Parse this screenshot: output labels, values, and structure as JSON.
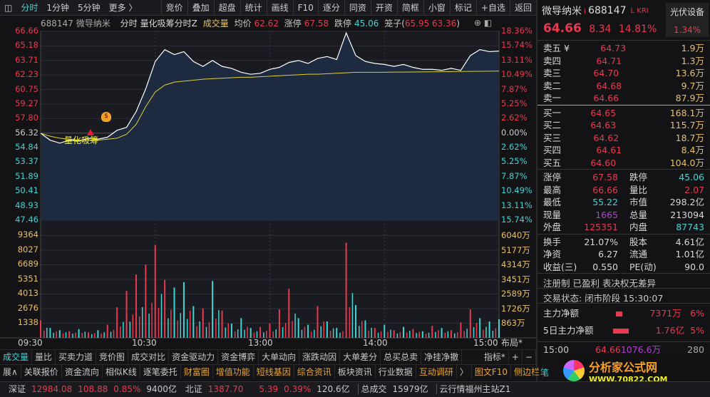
{
  "toolbar": {
    "left": [
      "分时",
      "1分钟",
      "5分钟",
      "更多 〉"
    ],
    "right": [
      "竞价",
      "叠加",
      "超盘",
      "统计",
      "画线",
      "F10",
      "逐分",
      "同资",
      "开资",
      "简框",
      "小窗",
      "标记",
      "+自选",
      "返回"
    ]
  },
  "info": {
    "code": "688147",
    "name": "微导纳米",
    "mode": "分时",
    "indicator": "量化吸筹分时Z",
    "volume_label": "成交量",
    "avg_label": "均价",
    "avg": "62.62",
    "up_label": "涨停",
    "up": "67.58",
    "down_label": "跌停",
    "down": "45.06",
    "cage_label": "笼子(",
    "cage": "65.95 63.36",
    ")": ")",
    "cage_close": ")"
  },
  "annotation": "量化吸筹",
  "chart_data": {
    "type": "line",
    "title": "688147 微导纳米 分时",
    "x_ticks": [
      "09:30",
      "10:30",
      "13:00",
      "14:00",
      "15:00"
    ],
    "price_ticks_left": [
      "66.66",
      "65.18",
      "63.71",
      "62.23",
      "60.75",
      "59.27",
      "57.80",
      "56.32",
      "54.84",
      "53.37",
      "51.89",
      "50.41",
      "48.93",
      "47.46"
    ],
    "pct_ticks_right": [
      "18.36%",
      "15.74%",
      "13.11%",
      "10.49%",
      "7.87%",
      "5.25%",
      "2.62%",
      "0.00%",
      "2.62%",
      "5.25%",
      "7.87%",
      "10.49%",
      "13.11%",
      "15.74%"
    ],
    "volume_ticks_left": [
      "9364",
      "8027",
      "6689",
      "5351",
      "4013",
      "2676",
      "1338"
    ],
    "volume_ticks_right": [
      "6040万",
      "5177万",
      "4314万",
      "3451万",
      "2589万",
      "1726万",
      "863万"
    ],
    "ylim": [
      47.46,
      66.66
    ],
    "prev_close": 56.32,
    "vol_max": 10700,
    "series": [
      {
        "name": "价格",
        "values": [
          56.3,
          55.6,
          55.3,
          55.6,
          55.5,
          55.8,
          55.7,
          55.9,
          56.6,
          56.9,
          58.5,
          60.8,
          63.6,
          64.8,
          64.3,
          64.6,
          63.6,
          63.1,
          63.7,
          63.1,
          62.9,
          62.5,
          62.3,
          62.4,
          62.8,
          63.0,
          63.5,
          63.7,
          63.4,
          63.9,
          64.1,
          63.8,
          66.5,
          64.2,
          63.6,
          63.4,
          63.3,
          63.1,
          63.3,
          63.0,
          62.8,
          62.8,
          62.7,
          62.9,
          62.7,
          64.2,
          64.8,
          64.6,
          64.66
        ]
      },
      {
        "name": "均价",
        "values": [
          56.3,
          56.0,
          55.8,
          55.7,
          55.6,
          55.6,
          55.6,
          55.7,
          55.8,
          56.2,
          57.2,
          59.0,
          60.5,
          61.2,
          61.5,
          61.6,
          61.7,
          61.8,
          61.85,
          61.9,
          61.95,
          62.0,
          62.0,
          62.05,
          62.1,
          62.15,
          62.2,
          62.25,
          62.3,
          62.3,
          62.35,
          62.4,
          62.45,
          62.5,
          62.5,
          62.5,
          62.5,
          62.52,
          62.52,
          62.53,
          62.54,
          62.55,
          62.56,
          62.57,
          62.58,
          62.59,
          62.6,
          62.61,
          62.62
        ]
      },
      {
        "name": "成交量",
        "values": [
          1600,
          900,
          700,
          600,
          800,
          500,
          700,
          1200,
          2800,
          4300,
          5800,
          6700,
          8500,
          5300,
          4600,
          5100,
          2900,
          2700,
          5200,
          2500,
          1300,
          1800,
          900,
          1000,
          1300,
          2600,
          4500,
          1800,
          1200,
          2900,
          1500,
          900,
          8700,
          3000,
          1600,
          900,
          1200,
          700,
          1000,
          800,
          600,
          1100,
          900,
          700,
          1400,
          2600,
          1800,
          1500,
          1700
        ],
        "colors": [
          "r",
          "c",
          "c",
          "r",
          "c",
          "r",
          "c",
          "r",
          "r",
          "r",
          "r",
          "r",
          "r",
          "r",
          "c",
          "c",
          "c",
          "r",
          "c",
          "r",
          "c",
          "c",
          "c",
          "r",
          "r",
          "r",
          "r",
          "c",
          "c",
          "r",
          "c",
          "c",
          "r",
          "c",
          "c",
          "r",
          "c",
          "r",
          "c",
          "r",
          "c",
          "r",
          "c",
          "r",
          "r",
          "r",
          "c",
          "c",
          "c"
        ]
      }
    ]
  },
  "panel": {
    "name": "微导纳米",
    "code": "688147",
    "badge_i": "i",
    "tag": "L KRI",
    "sector": "光伏设备",
    "sector_pct": "1.34%",
    "price": "64.66",
    "change": "8.34",
    "pct": "14.81%",
    "asks": [
      {
        "l": "卖五 ¥",
        "p": "64.73",
        "v": "1.9万"
      },
      {
        "l": "卖四",
        "p": "64.71",
        "v": "1.3万"
      },
      {
        "l": "卖三",
        "p": "64.70",
        "v": "13.6万"
      },
      {
        "l": "卖二",
        "p": "64.68",
        "v": "9.7万"
      },
      {
        "l": "卖一",
        "p": "64.66",
        "v": "87.9万"
      }
    ],
    "bids": [
      {
        "l": "买一",
        "p": "64.65",
        "v": "168.1万"
      },
      {
        "l": "买二",
        "p": "64.63",
        "v": "115.7万"
      },
      {
        "l": "买三",
        "p": "64.62",
        "v": "18.7万"
      },
      {
        "l": "买四",
        "p": "64.61",
        "v": "8.4万"
      },
      {
        "l": "买五",
        "p": "64.60",
        "v": "104.0万"
      }
    ],
    "stats": [
      [
        "涨停",
        "67.58",
        "rd",
        "跌停",
        "45.06",
        "cy"
      ],
      [
        "最高",
        "66.66",
        "rd",
        "量比",
        "2.07",
        "rd"
      ],
      [
        "最低",
        "55.22",
        "cy",
        "市值",
        "298.2亿",
        "wh"
      ],
      [
        "现量",
        "1665",
        "pu",
        "总量",
        "213094",
        "wh"
      ],
      [
        "外盘",
        "125351",
        "rd",
        "内盘",
        "87743",
        "cy"
      ]
    ],
    "stats2": [
      [
        "换手",
        "21.07%",
        "股本",
        "4.61亿"
      ],
      [
        "净资",
        "6.27",
        "流通",
        "1.01亿"
      ],
      [
        "收益(三)",
        "0.550",
        "PE(动)",
        "90.0"
      ]
    ],
    "tags": "注册制 已盈利 表决权无差异",
    "trade_status": "交易状态: 闭市阶段 15:30:07",
    "flow": [
      {
        "l": "主力净额",
        "v": "7371万",
        "p": "6%"
      },
      {
        "l": "5日主力净额",
        "v": "1.76亿",
        "p": "5%"
      }
    ],
    "tick": {
      "t": "15:00",
      "p": "64.66",
      "a": "1076.6万",
      "n": "280"
    },
    "bottom_tab": "笔",
    "logo": {
      "title": "分析家公式网",
      "url": "WWW.70822.COM"
    }
  },
  "layout_btn": "布局*",
  "tabs1": [
    "成交量",
    "量比",
    "买卖力道",
    "竞价图",
    "成交对比",
    "资金驱动力",
    "资金博弈",
    "大单动向",
    "涨跌动因",
    "大单差分",
    "总买总卖",
    "净挂净撤"
  ],
  "tabs1_right": [
    "指标*",
    "+",
    "−"
  ],
  "tabs2": [
    "展∧",
    "关联报价",
    "资金流向",
    "相似K线",
    "逐笔委托",
    "财富圈",
    "增值功能",
    "短线基因",
    "综合资讯",
    "板块资讯",
    "行业数据",
    "互动调研",
    "〉"
  ],
  "tabs2_right": [
    "图文F10",
    "侧边栏"
  ],
  "status": {
    "sz_label": "深证",
    "sz": "12984.08",
    "sz_chg": "108.88",
    "sz_pct": "0.85%",
    "sz_amt": "9400亿",
    "bz_label": "北证",
    "bz": "1387.70",
    "bz_chg": "5.39",
    "bz_pct": "0.39%",
    "bz_amt": "120.6亿",
    "total_label": "总成交",
    "total": "15979亿",
    "server": "云行情福州主站Z1"
  }
}
